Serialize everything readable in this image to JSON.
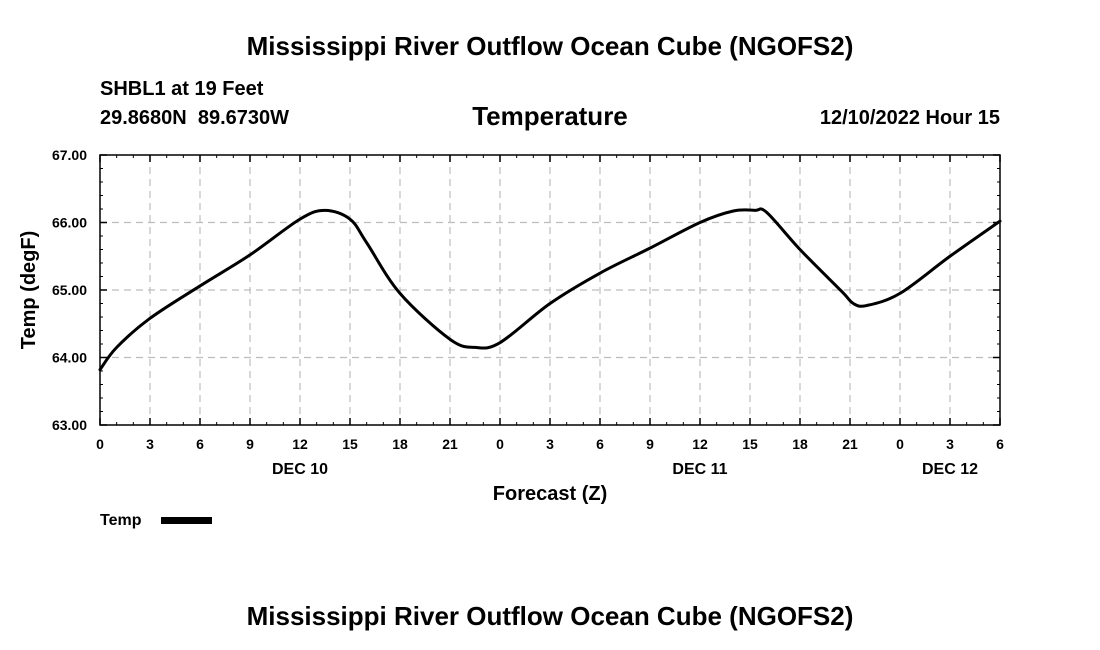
{
  "chart_data": {
    "type": "line",
    "title": "Mississippi River Outflow Ocean Cube (NGOFS2)",
    "station": "SHBL1 at 19 Feet",
    "location": "29.8680N  89.6730W",
    "subtitle": "Temperature",
    "date": "12/10/2022 Hour 15",
    "xlabel": "Forecast (Z)",
    "ylabel": "Temp (degF)",
    "xlim": [
      0,
      54
    ],
    "ylim": [
      63.0,
      67.0
    ],
    "x_ticks": [
      0,
      3,
      6,
      9,
      12,
      15,
      18,
      21,
      24,
      27,
      30,
      33,
      36,
      39,
      42,
      45,
      48,
      51,
      54
    ],
    "x_tick_labels": [
      "0",
      "3",
      "6",
      "9",
      "12",
      "15",
      "18",
      "21",
      "0",
      "3",
      "6",
      "9",
      "12",
      "15",
      "18",
      "21",
      "0",
      "3",
      "6"
    ],
    "y_ticks": [
      63.0,
      64.0,
      65.0,
      66.0,
      67.0
    ],
    "y_tick_labels": [
      "63.00",
      "64.00",
      "65.00",
      "66.00",
      "67.00"
    ],
    "day_labels": [
      {
        "x": 12,
        "label": "DEC 10"
      },
      {
        "x": 36,
        "label": "DEC 11"
      },
      {
        "x": 51,
        "label": "DEC 12"
      }
    ],
    "grid": true,
    "legend": [
      {
        "label": "Temp",
        "color": "#000000"
      }
    ],
    "series": [
      {
        "name": "Temp",
        "color": "#000000",
        "x": [
          0,
          1,
          3,
          6,
          9,
          12,
          13.5,
          15,
          16,
          18,
          21,
          22.5,
          24,
          27,
          30,
          33,
          36,
          38,
          39.3,
          40,
          42,
          44.5,
          45.2,
          46,
          48,
          51,
          54
        ],
        "y": [
          63.82,
          64.15,
          64.58,
          65.06,
          65.52,
          66.05,
          66.18,
          66.05,
          65.7,
          64.95,
          64.27,
          64.15,
          64.22,
          64.8,
          65.25,
          65.62,
          66.0,
          66.17,
          66.18,
          66.15,
          65.6,
          64.98,
          64.8,
          64.77,
          64.95,
          65.5,
          66.02
        ]
      }
    ],
    "footer_title": "Mississippi River Outflow Ocean Cube (NGOFS2)"
  }
}
